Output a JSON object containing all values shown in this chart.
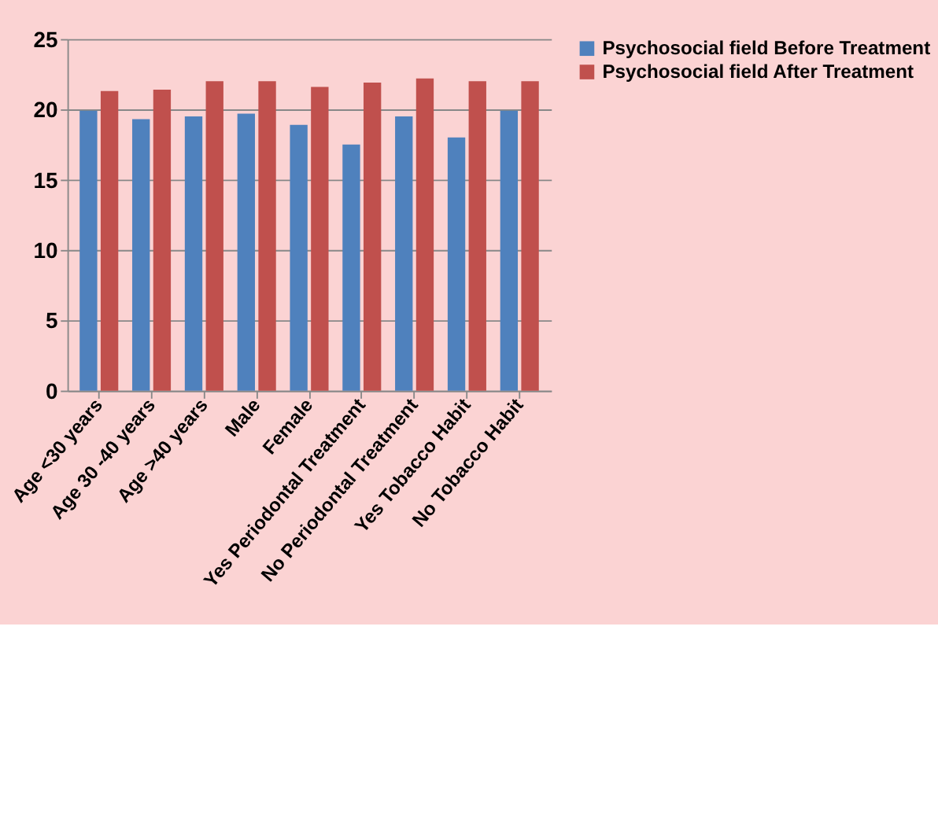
{
  "chart_data": {
    "type": "bar",
    "categories": [
      "Age <30 years",
      "Age 30 -40 years",
      "Age >40 years",
      "Male",
      "Female",
      "Yes Periodontal  Treatment",
      "No Periodontal  Treatment",
      "Yes Tobacco Habit",
      "No Tobacco Habit"
    ],
    "series": [
      {
        "name": "Psychosocial field Before Treatment",
        "color": "#4f81bd",
        "values": [
          19.9,
          19.3,
          19.5,
          19.7,
          18.9,
          17.5,
          19.5,
          18.0,
          19.9
        ]
      },
      {
        "name": "Psychosocial field After Treatment",
        "color": "#c0504d",
        "values": [
          21.3,
          21.4,
          22.0,
          22.0,
          21.6,
          21.9,
          22.2,
          22.0,
          22.0
        ]
      }
    ],
    "ylim": [
      0,
      25
    ],
    "yticks": [
      0,
      5,
      10,
      15,
      20,
      25
    ],
    "grid": "y",
    "legend": "right"
  }
}
